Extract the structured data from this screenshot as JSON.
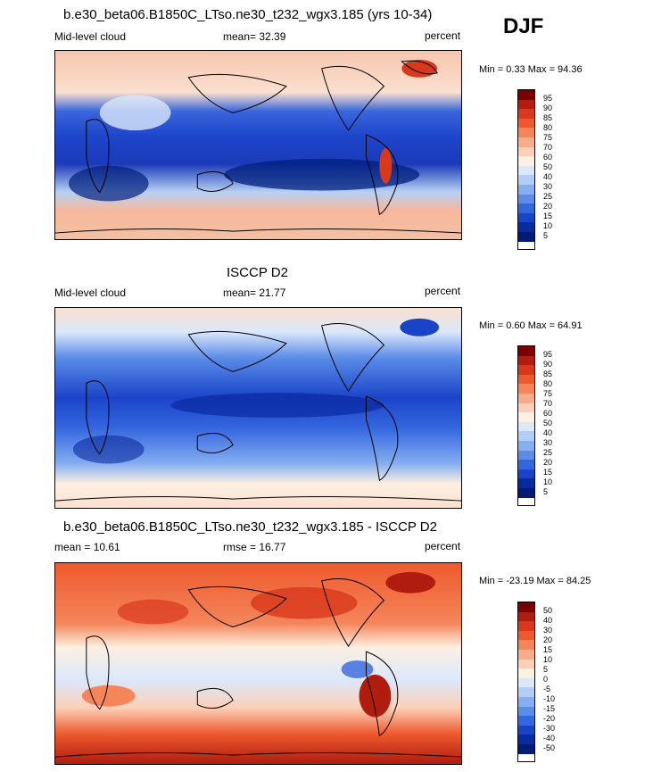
{
  "header": {
    "djf": "DJF"
  },
  "panels": [
    {
      "title": "b.e30_beta06.B1850C_LTso.ne30_t232_wgx3.185 (yrs 10-34)",
      "left": "Mid-level cloud",
      "center": "mean=  32.39",
      "right": "percent",
      "minmax": "Min =   0.33 Max =  94.36",
      "colorbar": {
        "labels": [
          "95",
          "90",
          "85",
          "80",
          "75",
          "70",
          "60",
          "50",
          "40",
          "30",
          "25",
          "20",
          "15",
          "10",
          "5"
        ],
        "colors": [
          "#7a0000",
          "#b01c0e",
          "#d8381c",
          "#ee5a2e",
          "#f4865a",
          "#f8ad8a",
          "#fcd0b8",
          "#fdf0e2",
          "#dbe8fb",
          "#b3cef6",
          "#86aef0",
          "#5b8ce8",
          "#3466de",
          "#1a44c8",
          "#0a2aa0",
          "#001a78"
        ]
      }
    },
    {
      "title": "ISCCP D2",
      "left": "Mid-level cloud",
      "center": "mean=  21.77",
      "right": "percent",
      "minmax": "Min =   0.60 Max =  64.91",
      "colorbar": {
        "labels": [
          "95",
          "90",
          "85",
          "80",
          "75",
          "70",
          "60",
          "50",
          "40",
          "30",
          "25",
          "20",
          "15",
          "10",
          "5"
        ],
        "colors": [
          "#7a0000",
          "#b01c0e",
          "#d8381c",
          "#ee5a2e",
          "#f4865a",
          "#f8ad8a",
          "#fcd0b8",
          "#fdf0e2",
          "#dbe8fb",
          "#b3cef6",
          "#86aef0",
          "#5b8ce8",
          "#3466de",
          "#1a44c8",
          "#0a2aa0",
          "#001a78"
        ]
      }
    },
    {
      "title": "b.e30_beta06.B1850C_LTso.ne30_t232_wgx3.185 - ISCCP D2",
      "left": "mean =  10.61",
      "center": "rmse =  16.77",
      "right": "percent",
      "minmax": "Min = -23.19 Max =  84.25",
      "colorbar": {
        "labels": [
          "50",
          "40",
          "30",
          "20",
          "15",
          "10",
          "5",
          "0",
          "-5",
          "-10",
          "-15",
          "-20",
          "-30",
          "-40",
          "-50"
        ],
        "colors": [
          "#7a0000",
          "#b01c0e",
          "#d8381c",
          "#ee5a2e",
          "#f4865a",
          "#f8ad8a",
          "#fcd0b8",
          "#fdf0e2",
          "#dbe8fb",
          "#b3cef6",
          "#86aef0",
          "#5b8ce8",
          "#3466de",
          "#1a44c8",
          "#0a2aa0",
          "#001a78"
        ]
      }
    }
  ]
}
